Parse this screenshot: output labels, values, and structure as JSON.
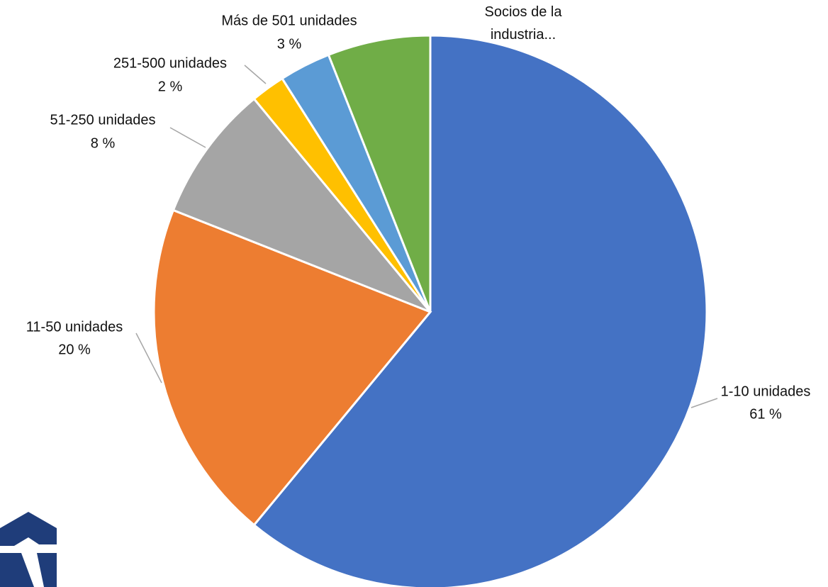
{
  "chart_data": {
    "type": "pie",
    "categories": [
      "1-10 unidades",
      "11-50 unidades",
      "51-250 unidades",
      "251-500 unidades",
      "Más de 501 unidades",
      "Socios de la industria..."
    ],
    "values": [
      61,
      20,
      8,
      2,
      3,
      6
    ],
    "value_labels": [
      "61 %",
      "20 %",
      "8 %",
      "2 %",
      "3 %",
      null
    ],
    "colors": [
      "#4472c4",
      "#ed7d31",
      "#a5a5a5",
      "#ffc000",
      "#5b9bd5",
      "#70ad47"
    ]
  }
}
